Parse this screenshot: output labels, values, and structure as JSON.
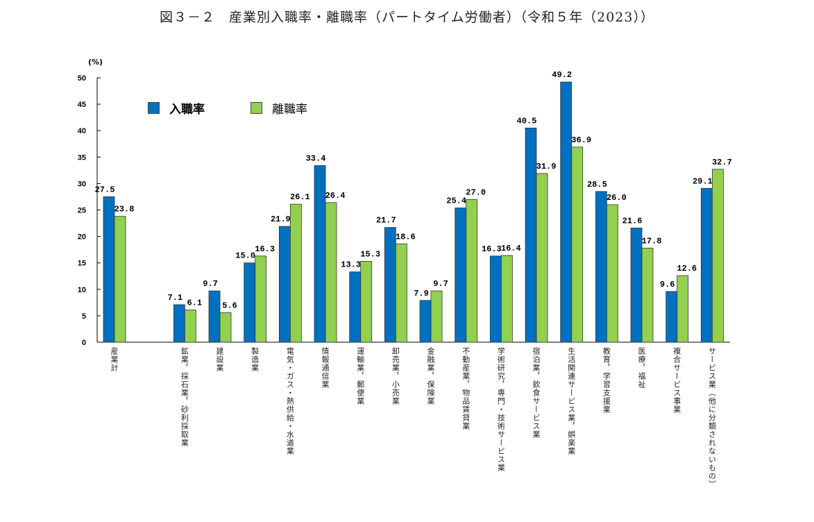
{
  "title": "図３－２　産業別入職率・離職率（パートタイム労働者）（令和５年（2023））",
  "chart_data": {
    "type": "bar",
    "title": "図３－２　産業別入職率・離職率（パートタイム労働者）（令和５年（2023））",
    "ylabel": "(%)",
    "ylim": [
      0,
      50
    ],
    "yticks": [
      0,
      5,
      10,
      15,
      20,
      25,
      30,
      35,
      40,
      45,
      50
    ],
    "grid": false,
    "legend": "top-left",
    "categories": [
      "産業計",
      "鉱業，採石業，砂利採取業",
      "建設業",
      "製造業",
      "電気・ガス・熱供給・水道業",
      "情報通信業",
      "運輸業，郵便業",
      "卸売業，小売業",
      "金融業，保険業",
      "不動産業，物品賃貸業",
      "学術研究，専門・技術サービス業",
      "宿泊業，飲食サービス業",
      "生活関連サービス業，娯楽業",
      "教育，学習支援業",
      "医療，福祉",
      "複合サービス事業",
      "サービス業（他に分類されないもの）"
    ],
    "series": [
      {
        "name": "入職率",
        "color": "#0070C0",
        "values": [
          27.5,
          7.1,
          9.7,
          15.0,
          21.9,
          33.4,
          13.3,
          21.7,
          7.9,
          25.4,
          16.3,
          40.5,
          49.2,
          28.5,
          21.6,
          9.6,
          29.1
        ]
      },
      {
        "name": "離職率",
        "color": "#92D050",
        "values": [
          23.8,
          6.1,
          5.6,
          16.3,
          26.1,
          26.4,
          15.3,
          18.6,
          9.7,
          27.0,
          16.4,
          31.9,
          36.9,
          26.0,
          17.8,
          12.6,
          32.7
        ]
      }
    ]
  }
}
